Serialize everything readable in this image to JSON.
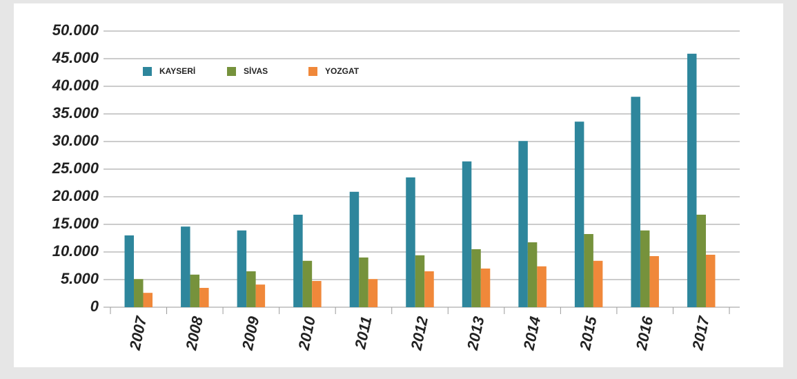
{
  "chart_data": {
    "type": "bar",
    "categories": [
      "2007",
      "2008",
      "2009",
      "2010",
      "2011",
      "2012",
      "2013",
      "2014",
      "2015",
      "2016",
      "2017"
    ],
    "series": [
      {
        "name": "KAYSERİ",
        "color": "#2e869c",
        "values": [
          13000,
          14600,
          13900,
          16750,
          20900,
          23500,
          26400,
          30100,
          33600,
          38100,
          45900
        ]
      },
      {
        "name": "SİVAS",
        "color": "#76923c",
        "values": [
          5100,
          5900,
          6500,
          8400,
          9000,
          9400,
          10500,
          11750,
          13250,
          13900,
          16750
        ]
      },
      {
        "name": "YOZGAT",
        "color": "#f0883a",
        "values": [
          2600,
          3500,
          4100,
          4750,
          5100,
          6500,
          7000,
          7400,
          8400,
          9250,
          9500
        ]
      }
    ],
    "ylim": [
      0,
      50000
    ],
    "yticks": [
      0,
      {
        "value": 5000,
        "label": "5.000"
      },
      {
        "value": 10000,
        "label": "10.000"
      },
      {
        "value": 15000,
        "label": "15.000"
      },
      {
        "value": 20000,
        "label": "20.000"
      },
      {
        "value": 25000,
        "label": "25.000"
      },
      {
        "value": 30000,
        "label": "30.000"
      },
      {
        "value": 35000,
        "label": "35.000"
      },
      {
        "value": 40000,
        "label": "40.000"
      },
      {
        "value": 45000,
        "label": "45.000"
      },
      {
        "value": 50000,
        "label": "50.000"
      }
    ],
    "grid": true,
    "legend": "top-left"
  }
}
